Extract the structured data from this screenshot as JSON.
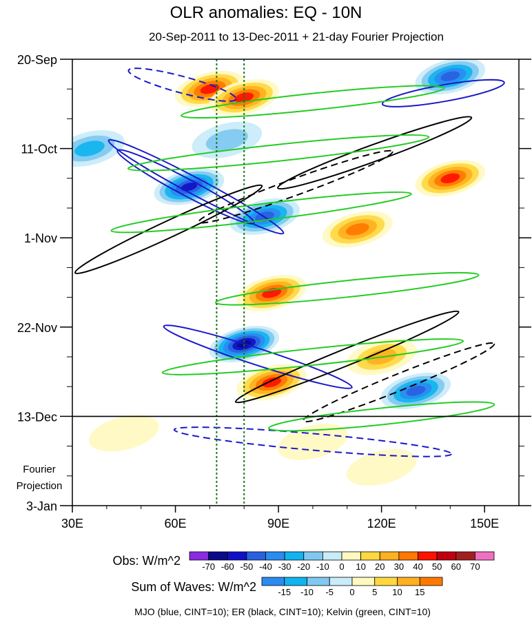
{
  "chart_data": {
    "type": "heatmap",
    "title": "OLR anomalies: EQ - 10N",
    "subtitle": "20-Sep-2011 to 13-Dec-2011 + 21-day Fourier Projection",
    "x_axis": {
      "range": [
        30,
        160
      ],
      "ticks": [
        30,
        60,
        90,
        120,
        150
      ],
      "tick_labels": [
        "30E",
        "60E",
        "90E",
        "120E",
        "150E"
      ]
    },
    "y_axis": {
      "range_days": [
        0,
        105
      ],
      "ticks": [
        0,
        21,
        42,
        63,
        84,
        105
      ],
      "tick_labels": [
        "20-Sep",
        "11-Oct",
        "1-Nov",
        "22-Nov",
        "13-Dec",
        "3-Jan"
      ]
    },
    "projection_start_day": 84,
    "projection_label": [
      "Fourier",
      "Projection"
    ],
    "reference_longitudes": [
      72,
      80
    ],
    "obs_colorbar": {
      "label": "Obs: W/m^2",
      "levels": [
        -70,
        -60,
        -50,
        -40,
        -30,
        -20,
        -10,
        0,
        10,
        20,
        30,
        40,
        50,
        60,
        70
      ],
      "labels": [
        "-70",
        "-60",
        "-50",
        "-40",
        "-30",
        "-20",
        "-10",
        "0",
        "10",
        "20",
        "30",
        "40",
        "50",
        "60",
        "70"
      ],
      "colors": [
        "#8a2be2",
        "#0a0a8a",
        "#1010c8",
        "#2860e0",
        "#2a8cf0",
        "#10b4f0",
        "#80c8f0",
        "#c8ecf8",
        "#fff8c0",
        "#ffd840",
        "#ffb020",
        "#ff7800",
        "#ff1000",
        "#c00010",
        "#a02020",
        "#f070c0"
      ]
    },
    "waves_colorbar": {
      "label": "Sum of Waves: W/m^2",
      "levels": [
        -15,
        -10,
        -5,
        0,
        5,
        10,
        15
      ],
      "labels": [
        "-15",
        "-10",
        "-5",
        "0",
        "5",
        "10",
        "15"
      ],
      "colors": [
        "#2a8cf0",
        "#10b4f0",
        "#80c8f0",
        "#c8ecf8",
        "#fff8c0",
        "#ffd840",
        "#ffb020",
        "#ff7800"
      ]
    },
    "footer": "MJO (blue, CINT=10); ER (black, CINT=10); Kelvin (green, CINT=10)",
    "contour_series": [
      {
        "name": "MJO",
        "color": "#1818c8",
        "cint": 10
      },
      {
        "name": "ER",
        "color": "#000000",
        "cint": 10
      },
      {
        "name": "Kelvin",
        "color": "#22cc22",
        "cint": 10
      }
    ],
    "anomaly_blobs": [
      {
        "lon": 70,
        "day": 7,
        "value": 50
      },
      {
        "lon": 80,
        "day": 9,
        "value": 45
      },
      {
        "lon": 75,
        "day": 19,
        "value": -20
      },
      {
        "lon": 64,
        "day": 30,
        "value": -55
      },
      {
        "lon": 86,
        "day": 37,
        "value": -45
      },
      {
        "lon": 88,
        "day": 55,
        "value": 50
      },
      {
        "lon": 80,
        "day": 67,
        "value": -70
      },
      {
        "lon": 88,
        "day": 76,
        "value": 50
      },
      {
        "lon": 140,
        "day": 28,
        "value": 45
      },
      {
        "lon": 113,
        "day": 40,
        "value": 40
      },
      {
        "lon": 140,
        "day": 4,
        "value": -50
      },
      {
        "lon": 130,
        "day": 78,
        "value": -50
      },
      {
        "lon": 35,
        "day": 21,
        "value": -25
      },
      {
        "lon": 120,
        "day": 70,
        "value": 30
      },
      {
        "lon": 100,
        "day": 90,
        "value": 10
      },
      {
        "lon": 120,
        "day": 96,
        "value": 10
      },
      {
        "lon": 45,
        "day": 88,
        "value": 12
      }
    ],
    "mjo_contours": [
      {
        "lon": 63,
        "day": 30,
        "len": 50,
        "tilt": 28,
        "dash": false
      },
      {
        "lon": 66,
        "day": 30,
        "len": 64,
        "tilt": 28,
        "dash": false
      },
      {
        "lon": 84,
        "day": 70,
        "len": 64,
        "tilt": 18,
        "dash": false
      },
      {
        "lon": 62,
        "day": 6,
        "len": 36,
        "tilt": 15,
        "dash": true
      },
      {
        "lon": 100,
        "day": 90,
        "len": 90,
        "tilt": 5,
        "dash": true
      },
      {
        "lon": 138,
        "day": 8,
        "len": 40,
        "tilt": -10,
        "dash": false
      }
    ],
    "er_contours": [
      {
        "lon": 95,
        "day": 30,
        "len": 60,
        "tilt": -20,
        "dash": true
      },
      {
        "lon": 118,
        "day": 22,
        "len": 60,
        "tilt": -20,
        "dash": false
      },
      {
        "lon": 110,
        "day": 70,
        "len": 70,
        "tilt": -22,
        "dash": false
      },
      {
        "lon": 125,
        "day": 76,
        "len": 60,
        "tilt": -22,
        "dash": true
      },
      {
        "lon": 58,
        "day": 40,
        "len": 60,
        "tilt": -25,
        "dash": false
      }
    ],
    "kelvin_contours": [
      {
        "lon": 100,
        "day": 10,
        "len": 70,
        "tilt": -6
      },
      {
        "lon": 90,
        "day": 22,
        "len": 80,
        "tilt": -6
      },
      {
        "lon": 85,
        "day": 36,
        "len": 80,
        "tilt": -7
      },
      {
        "lon": 110,
        "day": 54,
        "len": 70,
        "tilt": -6
      },
      {
        "lon": 100,
        "day": 70,
        "len": 80,
        "tilt": -6
      },
      {
        "lon": 120,
        "day": 84,
        "len": 60,
        "tilt": -6
      }
    ]
  }
}
